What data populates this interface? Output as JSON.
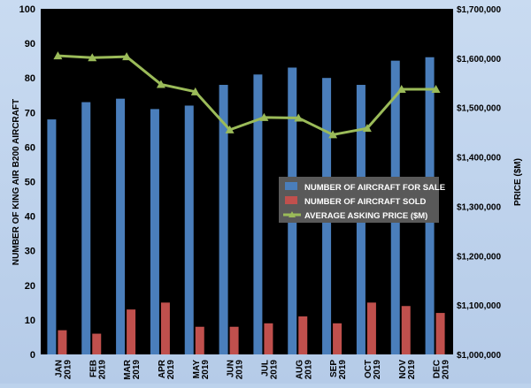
{
  "chart_data": {
    "type": "bar",
    "categories": [
      [
        "JAN",
        "2019"
      ],
      [
        "FEB",
        "2019"
      ],
      [
        "MAR",
        "2019"
      ],
      [
        "APR",
        "2019"
      ],
      [
        "MAY",
        "2019"
      ],
      [
        "JUN",
        "2019"
      ],
      [
        "JUL",
        "2019"
      ],
      [
        "AUG",
        "2019"
      ],
      [
        "SEP",
        "2019"
      ],
      [
        "OCT",
        "2019"
      ],
      [
        "NOV",
        "2019"
      ],
      [
        "DEC",
        "2019"
      ]
    ],
    "series": [
      {
        "name": "NUMBER OF AIRCRAFT FOR SALE",
        "type": "bar",
        "axis": "left",
        "color": "#4a7ebb",
        "values": [
          68,
          73,
          74,
          71,
          72,
          78,
          81,
          83,
          80,
          78,
          85,
          86
        ]
      },
      {
        "name": "NUMBER OF AIRCRAFT SOLD",
        "type": "bar",
        "axis": "left",
        "color": "#c0504d",
        "values": [
          7,
          6,
          13,
          15,
          8,
          8,
          9,
          11,
          9,
          15,
          14,
          12
        ]
      },
      {
        "name": "AVERAGE ASKING PRICE ($M)",
        "type": "line",
        "axis": "right",
        "color": "#9bbb59",
        "values": [
          1605000,
          1601000,
          1603000,
          1547000,
          1532000,
          1455000,
          1480000,
          1479000,
          1445000,
          1458000,
          1537000,
          1537000
        ]
      }
    ],
    "ylabel": "NUMBER OF KING AIR B200 AIRCRAFT",
    "y2label": "PRICE ($M)",
    "ylim": [
      0,
      100
    ],
    "y2lim": [
      1000000,
      1700000
    ],
    "y_ticks": [
      "0",
      "10",
      "20",
      "30",
      "40",
      "50",
      "60",
      "70",
      "80",
      "90",
      "100"
    ],
    "y2_ticks": [
      "$1,000,000",
      "$1,100,000",
      "$1,200,000",
      "$1,300,000",
      "$1,400,000",
      "$1,500,000",
      "$1,600,000",
      "$1,700,000"
    ],
    "legend_placement": "center-right",
    "grid": false,
    "plot_background": "#000000"
  }
}
